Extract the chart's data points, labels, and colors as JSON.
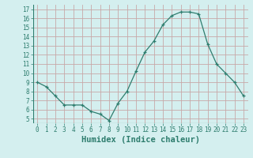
{
  "x": [
    0,
    1,
    2,
    3,
    4,
    5,
    6,
    7,
    8,
    9,
    10,
    11,
    12,
    13,
    14,
    15,
    16,
    17,
    18,
    19,
    20,
    21,
    22,
    23
  ],
  "y": [
    9.0,
    8.5,
    7.5,
    6.5,
    6.5,
    6.5,
    5.8,
    5.5,
    4.8,
    6.7,
    8.0,
    10.2,
    12.3,
    13.5,
    15.3,
    16.3,
    16.7,
    16.7,
    16.5,
    13.2,
    11.0,
    10.0,
    9.0,
    7.5
  ],
  "xlabel": "Humidex (Indice chaleur)",
  "ylim": [
    4.5,
    17.5
  ],
  "xlim": [
    -0.5,
    23.5
  ],
  "yticks": [
    5,
    6,
    7,
    8,
    9,
    10,
    11,
    12,
    13,
    14,
    15,
    16,
    17
  ],
  "xticks": [
    0,
    1,
    2,
    3,
    4,
    5,
    6,
    7,
    8,
    9,
    10,
    11,
    12,
    13,
    14,
    15,
    16,
    17,
    18,
    19,
    20,
    21,
    22,
    23
  ],
  "line_color": "#2e7d6e",
  "marker": "+",
  "bg_color": "#d4efef",
  "grid_color": "#c8a8a8",
  "label_color": "#2e7d6e",
  "tick_label_fontsize": 5.5,
  "xlabel_fontsize": 7.5
}
